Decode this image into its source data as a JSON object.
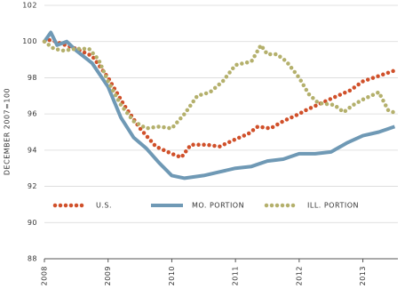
{
  "chart_data": {
    "type": "line",
    "y_label": "DECEMBER 2007=100",
    "xlim": [
      2008,
      2013.55
    ],
    "xticks": [
      2008,
      2009,
      2010,
      2011,
      2012,
      2013
    ],
    "ylim": [
      88,
      102
    ],
    "yticks": [
      88,
      90,
      92,
      94,
      96,
      98,
      100,
      102
    ],
    "grid": true,
    "series": [
      {
        "name": "U.S.",
        "color": "#d0502a",
        "style": "dotted",
        "x": [
          2008,
          2008.1,
          2008.25,
          2008.5,
          2008.75,
          2009,
          2009.25,
          2009.5,
          2009.75,
          2010,
          2010.15,
          2010.3,
          2010.55,
          2010.75,
          2011,
          2011.2,
          2011.35,
          2011.55,
          2011.75,
          2012,
          2012.1,
          2012.35,
          2012.6,
          2012.8,
          2013,
          2013.25,
          2013.5
        ],
        "values": [
          100,
          100.1,
          99.9,
          99.6,
          99.2,
          98,
          96.5,
          95.2,
          94.2,
          93.8,
          93.6,
          94.3,
          94.3,
          94.2,
          94.6,
          94.9,
          95.3,
          95.2,
          95.6,
          96,
          96.2,
          96.6,
          97,
          97.3,
          97.8,
          98.1,
          98.4
        ]
      },
      {
        "name": "MO. PORTION",
        "color": "#6f99b5",
        "style": "solid",
        "x": [
          2008,
          2008.1,
          2008.2,
          2008.35,
          2008.5,
          2008.75,
          2009,
          2009.2,
          2009.4,
          2009.6,
          2009.8,
          2010,
          2010.2,
          2010.5,
          2010.75,
          2011,
          2011.25,
          2011.5,
          2011.75,
          2012,
          2012.25,
          2012.5,
          2012.75,
          2013,
          2013.25,
          2013.5
        ],
        "values": [
          100,
          100.5,
          99.8,
          100,
          99.5,
          98.8,
          97.5,
          95.8,
          94.7,
          94.1,
          93.3,
          92.6,
          92.45,
          92.6,
          92.8,
          93,
          93.1,
          93.4,
          93.5,
          93.8,
          93.8,
          93.9,
          94.4,
          94.8,
          95,
          95.3
        ]
      },
      {
        "name": "ILL. PORTION",
        "color": "#b4b06c",
        "style": "dotted",
        "x": [
          2008,
          2008.15,
          2008.3,
          2008.5,
          2008.7,
          2008.85,
          2009,
          2009.2,
          2009.4,
          2009.6,
          2009.8,
          2010,
          2010.2,
          2010.4,
          2010.6,
          2010.8,
          2011,
          2011.25,
          2011.4,
          2011.5,
          2011.65,
          2011.8,
          2012,
          2012.15,
          2012.3,
          2012.55,
          2012.7,
          2012.85,
          2013,
          2013.25,
          2013.4,
          2013.55
        ],
        "values": [
          100,
          99.6,
          99.5,
          99.6,
          99.6,
          99,
          97.8,
          96.5,
          95.6,
          95.2,
          95.3,
          95.2,
          96,
          97,
          97.2,
          97.8,
          98.7,
          98.9,
          99.8,
          99.3,
          99.3,
          98.9,
          98,
          97.1,
          96.6,
          96.5,
          96.1,
          96.5,
          96.8,
          97.2,
          96.2,
          96
        ]
      }
    ]
  }
}
